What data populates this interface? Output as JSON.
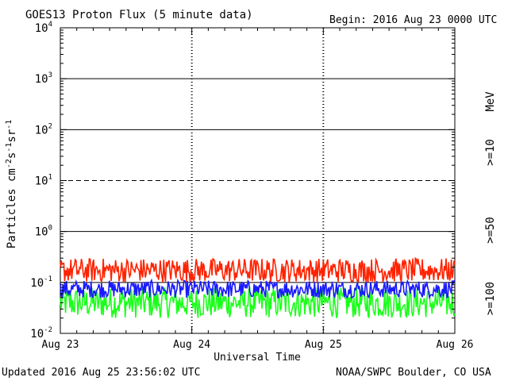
{
  "header": {
    "title": "GOES13 Proton Flux (5 minute data)",
    "begin": "Begin: 2016 Aug 23 0000 UTC"
  },
  "footer": {
    "updated": "Updated 2016 Aug 25 23:56:02 UTC",
    "credit": "NOAA/SWPC Boulder, CO USA"
  },
  "chart_data": {
    "type": "line",
    "title": "GOES13 Proton Flux (5 minute data)",
    "xlabel": "Universal Time",
    "ylabel": "Particles cm-2s-1sr-1",
    "yscale": "log",
    "ylim": [
      0.01,
      10000
    ],
    "y_tick_labels": [
      "10-2",
      "10-1",
      "100",
      "101",
      "102",
      "103",
      "104"
    ],
    "x_tick_labels": [
      "Aug 23",
      "Aug 24",
      "Aug 25",
      "Aug 26"
    ],
    "xlim_days": [
      0,
      3
    ],
    "reference_lines": [
      {
        "value": 1,
        "style": "solid"
      },
      {
        "value": 10,
        "style": "dashed"
      },
      {
        "value": 100,
        "style": "solid"
      },
      {
        "value": 1000,
        "style": "solid"
      },
      {
        "value": 0.1,
        "style": "solid"
      }
    ],
    "energy_unit": "MeV",
    "grid": "vertical dashed at day boundaries",
    "series": [
      {
        "name": ">=10",
        "color": "#ff2200",
        "typical_range": [
          0.1,
          0.3
        ]
      },
      {
        "name": ">=50",
        "color": "#1a1aff",
        "typical_range": [
          0.05,
          0.11
        ]
      },
      {
        "name": ">=100",
        "color": "#1aff1a",
        "typical_range": [
          0.02,
          0.08
        ]
      }
    ]
  }
}
